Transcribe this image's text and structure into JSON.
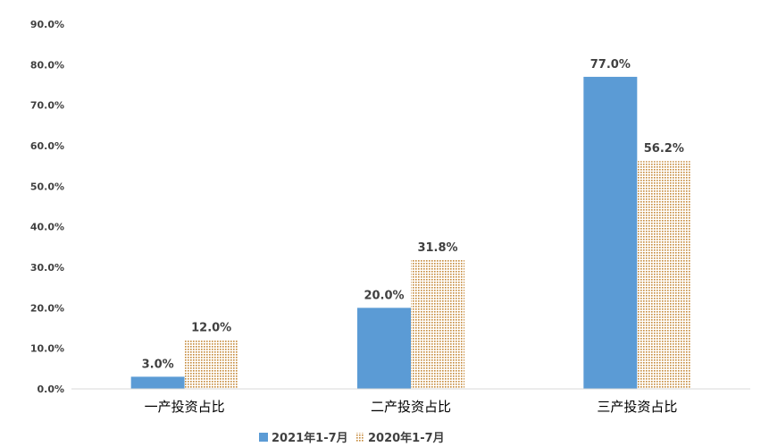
{
  "chart_data": {
    "type": "bar",
    "categories": [
      "一产投资占比",
      "二产投资占比",
      "三产投资占比"
    ],
    "series": [
      {
        "name": "2021年1-7月",
        "values": [
          3.0,
          20.0,
          77.0
        ],
        "labels": [
          "3.0%",
          "20.0%",
          "77.0%"
        ],
        "color": "#5B9BD5",
        "pattern": "solid"
      },
      {
        "name": "2020年1-7月",
        "values": [
          12.0,
          31.8,
          56.2
        ],
        "labels": [
          "12.0%",
          "31.8%",
          "56.2%"
        ],
        "color": "#C58A3A",
        "pattern": "dotted"
      }
    ],
    "y_ticks": [
      "0.0%",
      "10.0%",
      "20.0%",
      "30.0%",
      "40.0%",
      "50.0%",
      "60.0%",
      "70.0%",
      "80.0%",
      "90.0%"
    ],
    "ylim": [
      0,
      90
    ],
    "grid": false,
    "legend_position": "bottom"
  }
}
